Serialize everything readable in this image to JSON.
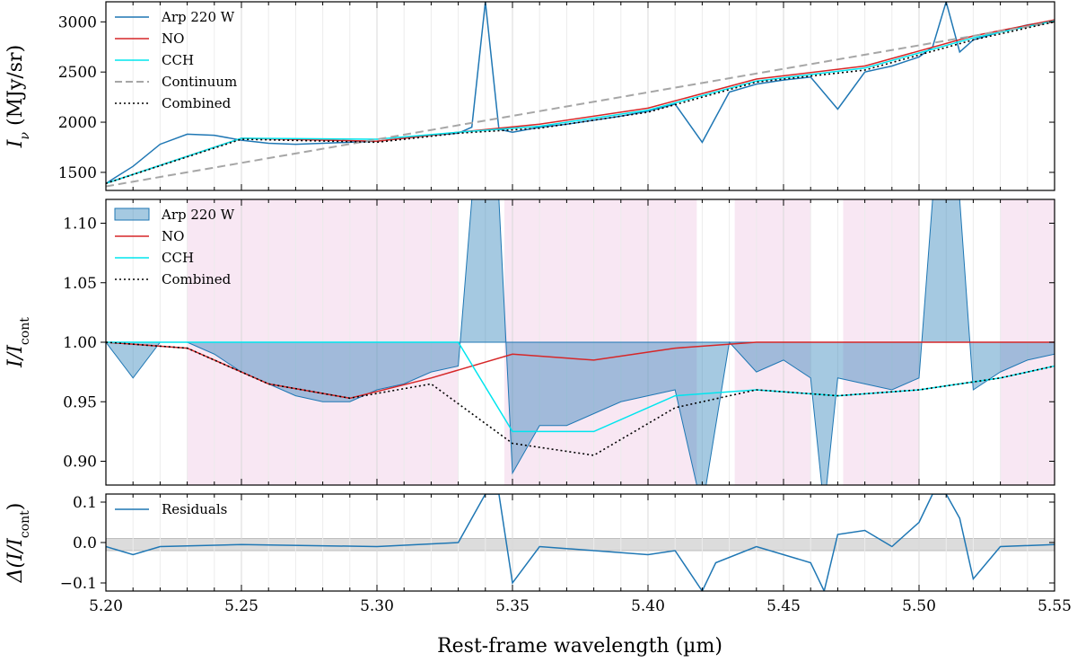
{
  "chart_data": [
    {
      "type": "line",
      "panel": "top",
      "ylabel_main": "I",
      "ylabel_sub": "ν",
      "ylabel_unit": " (MJy/sr)",
      "xlim": [
        5.2,
        5.55
      ],
      "ylim": [
        1320,
        3200
      ],
      "yticks": [
        1500,
        2000,
        2500,
        3000
      ],
      "legend": {
        "placement": "top-left",
        "entries": [
          {
            "label": "Arp 220 W",
            "color": "#1f77b4",
            "style": "solid"
          },
          {
            "label": "NO",
            "color": "#d62728",
            "style": "solid"
          },
          {
            "label": "CCH",
            "color": "#00e5ee",
            "style": "solid"
          },
          {
            "label": "Continuum",
            "color": "#a6a6a6",
            "style": "dashed"
          },
          {
            "label": "Combined",
            "color": "#000000",
            "style": "dotted"
          }
        ]
      },
      "series": [
        {
          "name": "Arp 220 W",
          "x": [
            5.2,
            5.21,
            5.22,
            5.23,
            5.24,
            5.25,
            5.26,
            5.27,
            5.28,
            5.29,
            5.3,
            5.31,
            5.32,
            5.33,
            5.335,
            5.34,
            5.345,
            5.35,
            5.36,
            5.37,
            5.38,
            5.39,
            5.4,
            5.41,
            5.42,
            5.43,
            5.44,
            5.45,
            5.46,
            5.47,
            5.48,
            5.49,
            5.5,
            5.505,
            5.51,
            5.515,
            5.52,
            5.53,
            5.54,
            5.55
          ],
          "y": [
            1390,
            1560,
            1780,
            1880,
            1870,
            1820,
            1790,
            1780,
            1790,
            1800,
            1810,
            1840,
            1870,
            1890,
            1950,
            3200,
            1930,
            1900,
            1950,
            1980,
            2020,
            2060,
            2110,
            2180,
            1800,
            2300,
            2380,
            2420,
            2450,
            2130,
            2500,
            2560,
            2650,
            2750,
            3200,
            2700,
            2820,
            2900,
            2970,
            3010
          ]
        },
        {
          "name": "NO",
          "x": [
            5.2,
            5.25,
            5.3,
            5.33,
            5.36,
            5.4,
            5.44,
            5.48,
            5.52,
            5.55
          ],
          "y": [
            1390,
            1840,
            1810,
            1900,
            1980,
            2140,
            2430,
            2560,
            2860,
            3020
          ]
        },
        {
          "name": "CCH",
          "x": [
            5.2,
            5.25,
            5.3,
            5.33,
            5.36,
            5.4,
            5.44,
            5.48,
            5.52,
            5.55
          ],
          "y": [
            1390,
            1840,
            1830,
            1900,
            1960,
            2120,
            2410,
            2540,
            2840,
            3010
          ]
        },
        {
          "name": "Continuum",
          "x": [
            5.2,
            5.55
          ],
          "y": [
            1360,
            3000
          ]
        },
        {
          "name": "Combined",
          "x": [
            5.2,
            5.25,
            5.3,
            5.33,
            5.36,
            5.4,
            5.44,
            5.48,
            5.52,
            5.55
          ],
          "y": [
            1390,
            1830,
            1800,
            1890,
            1940,
            2100,
            2400,
            2520,
            2820,
            3000
          ]
        }
      ]
    },
    {
      "type": "line",
      "panel": "middle",
      "ylabel_main": "I/I",
      "ylabel_sub": "cont",
      "xlim": [
        5.2,
        5.55
      ],
      "ylim": [
        0.88,
        1.12
      ],
      "yticks": [
        "0.90",
        "0.95",
        "1.00",
        "1.05",
        "1.10"
      ],
      "shaded_regions": [
        [
          5.23,
          5.33
        ],
        [
          5.347,
          5.418
        ],
        [
          5.432,
          5.46
        ],
        [
          5.472,
          5.5
        ],
        [
          5.53,
          5.55
        ]
      ],
      "legend": {
        "placement": "top-left",
        "entries": [
          {
            "label": "Arp 220 W",
            "color": "#1f77b4",
            "style": "filled"
          },
          {
            "label": "NO",
            "color": "#d62728",
            "style": "solid"
          },
          {
            "label": "CCH",
            "color": "#00e5ee",
            "style": "solid"
          },
          {
            "label": "Combined",
            "color": "#000000",
            "style": "dotted"
          }
        ]
      },
      "series": [
        {
          "name": "Arp 220 W",
          "x": [
            5.2,
            5.21,
            5.22,
            5.23,
            5.24,
            5.25,
            5.26,
            5.27,
            5.28,
            5.29,
            5.3,
            5.31,
            5.32,
            5.33,
            5.335,
            5.34,
            5.345,
            5.35,
            5.36,
            5.37,
            5.38,
            5.39,
            5.4,
            5.41,
            5.42,
            5.43,
            5.44,
            5.45,
            5.46,
            5.465,
            5.47,
            5.48,
            5.49,
            5.5,
            5.505,
            5.51,
            5.515,
            5.52,
            5.53,
            5.54,
            5.55
          ],
          "y": [
            1.0,
            0.97,
            1.0,
            1.0,
            0.99,
            0.975,
            0.965,
            0.955,
            0.95,
            0.95,
            0.96,
            0.965,
            0.975,
            0.98,
            1.12,
            1.12,
            1.12,
            0.89,
            0.93,
            0.93,
            0.94,
            0.95,
            0.955,
            0.96,
            0.86,
            1.0,
            0.975,
            0.985,
            0.97,
            0.86,
            0.97,
            0.965,
            0.96,
            0.97,
            1.12,
            1.12,
            1.12,
            0.96,
            0.975,
            0.985,
            0.99
          ]
        },
        {
          "name": "NO",
          "x": [
            5.2,
            5.23,
            5.26,
            5.29,
            5.32,
            5.35,
            5.38,
            5.41,
            5.44,
            5.55
          ],
          "y": [
            1.0,
            0.995,
            0.965,
            0.953,
            0.97,
            0.99,
            0.985,
            0.995,
            1.0,
            1.0
          ]
        },
        {
          "name": "CCH",
          "x": [
            5.2,
            5.33,
            5.35,
            5.38,
            5.41,
            5.44,
            5.47,
            5.5,
            5.53,
            5.55
          ],
          "y": [
            1.0,
            1.0,
            0.925,
            0.925,
            0.955,
            0.96,
            0.955,
            0.96,
            0.97,
            0.98
          ]
        },
        {
          "name": "Combined",
          "x": [
            5.2,
            5.23,
            5.26,
            5.29,
            5.32,
            5.35,
            5.38,
            5.41,
            5.44,
            5.47,
            5.5,
            5.53,
            5.55
          ],
          "y": [
            1.0,
            0.995,
            0.965,
            0.953,
            0.965,
            0.915,
            0.905,
            0.945,
            0.96,
            0.955,
            0.96,
            0.97,
            0.98
          ]
        }
      ]
    },
    {
      "type": "line",
      "panel": "bottom",
      "ylabel_main": "Δ(I/I",
      "ylabel_sub": "cont",
      "ylabel_close": ")",
      "xlabel": "Rest-frame wavelength (µm)",
      "xlim": [
        5.2,
        5.55
      ],
      "xticks": [
        "5.20",
        "5.25",
        "5.30",
        "5.35",
        "5.40",
        "5.45",
        "5.50",
        "5.55"
      ],
      "ylim": [
        -0.12,
        0.12
      ],
      "yticks": [
        "0.1",
        "0.0",
        "−0.1"
      ],
      "yticks_values": [
        0.1,
        0.0,
        -0.1
      ],
      "band": [
        -0.02,
        0.01
      ],
      "legend": {
        "placement": "top-left",
        "entries": [
          {
            "label": "Residuals",
            "color": "#1f77b4",
            "style": "solid"
          }
        ]
      },
      "series": [
        {
          "name": "Residuals",
          "x": [
            5.2,
            5.21,
            5.22,
            5.25,
            5.3,
            5.33,
            5.335,
            5.34,
            5.345,
            5.35,
            5.36,
            5.38,
            5.4,
            5.41,
            5.42,
            5.425,
            5.44,
            5.46,
            5.465,
            5.47,
            5.48,
            5.49,
            5.5,
            5.505,
            5.51,
            5.515,
            5.52,
            5.53,
            5.55
          ],
          "y": [
            -0.01,
            -0.03,
            -0.01,
            -0.005,
            -0.01,
            0.0,
            0.06,
            0.12,
            0.12,
            -0.1,
            -0.01,
            -0.02,
            -0.03,
            -0.02,
            -0.12,
            -0.05,
            -0.01,
            -0.05,
            -0.12,
            0.02,
            0.03,
            -0.01,
            0.05,
            0.12,
            0.12,
            0.06,
            -0.09,
            -0.01,
            -0.005
          ]
        }
      ]
    }
  ]
}
